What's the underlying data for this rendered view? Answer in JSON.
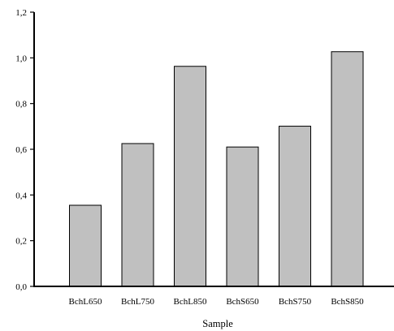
{
  "chart_data": {
    "type": "bar",
    "title": "",
    "xlabel": "Sample",
    "ylabel": "",
    "categories": [
      "BchL650",
      "BchL750",
      "BchL850",
      "BchS650",
      "BchS750",
      "BchS850"
    ],
    "values": [
      0.355,
      0.625,
      0.963,
      0.61,
      0.701,
      1.027
    ],
    "ylim": [
      0,
      1.2
    ],
    "yticks": [
      0.0,
      0.2,
      0.4,
      0.6,
      0.8,
      1.0,
      1.2
    ],
    "ytick_labels": [
      "0,0",
      "0,2",
      "0,4",
      "0,6",
      "0,8",
      "1,0",
      "1,2"
    ],
    "grid": false,
    "legend": "none",
    "colors": {
      "bar_fill": "#c0c0c0",
      "bar_stroke": "#000000",
      "axis": "#000000"
    }
  }
}
